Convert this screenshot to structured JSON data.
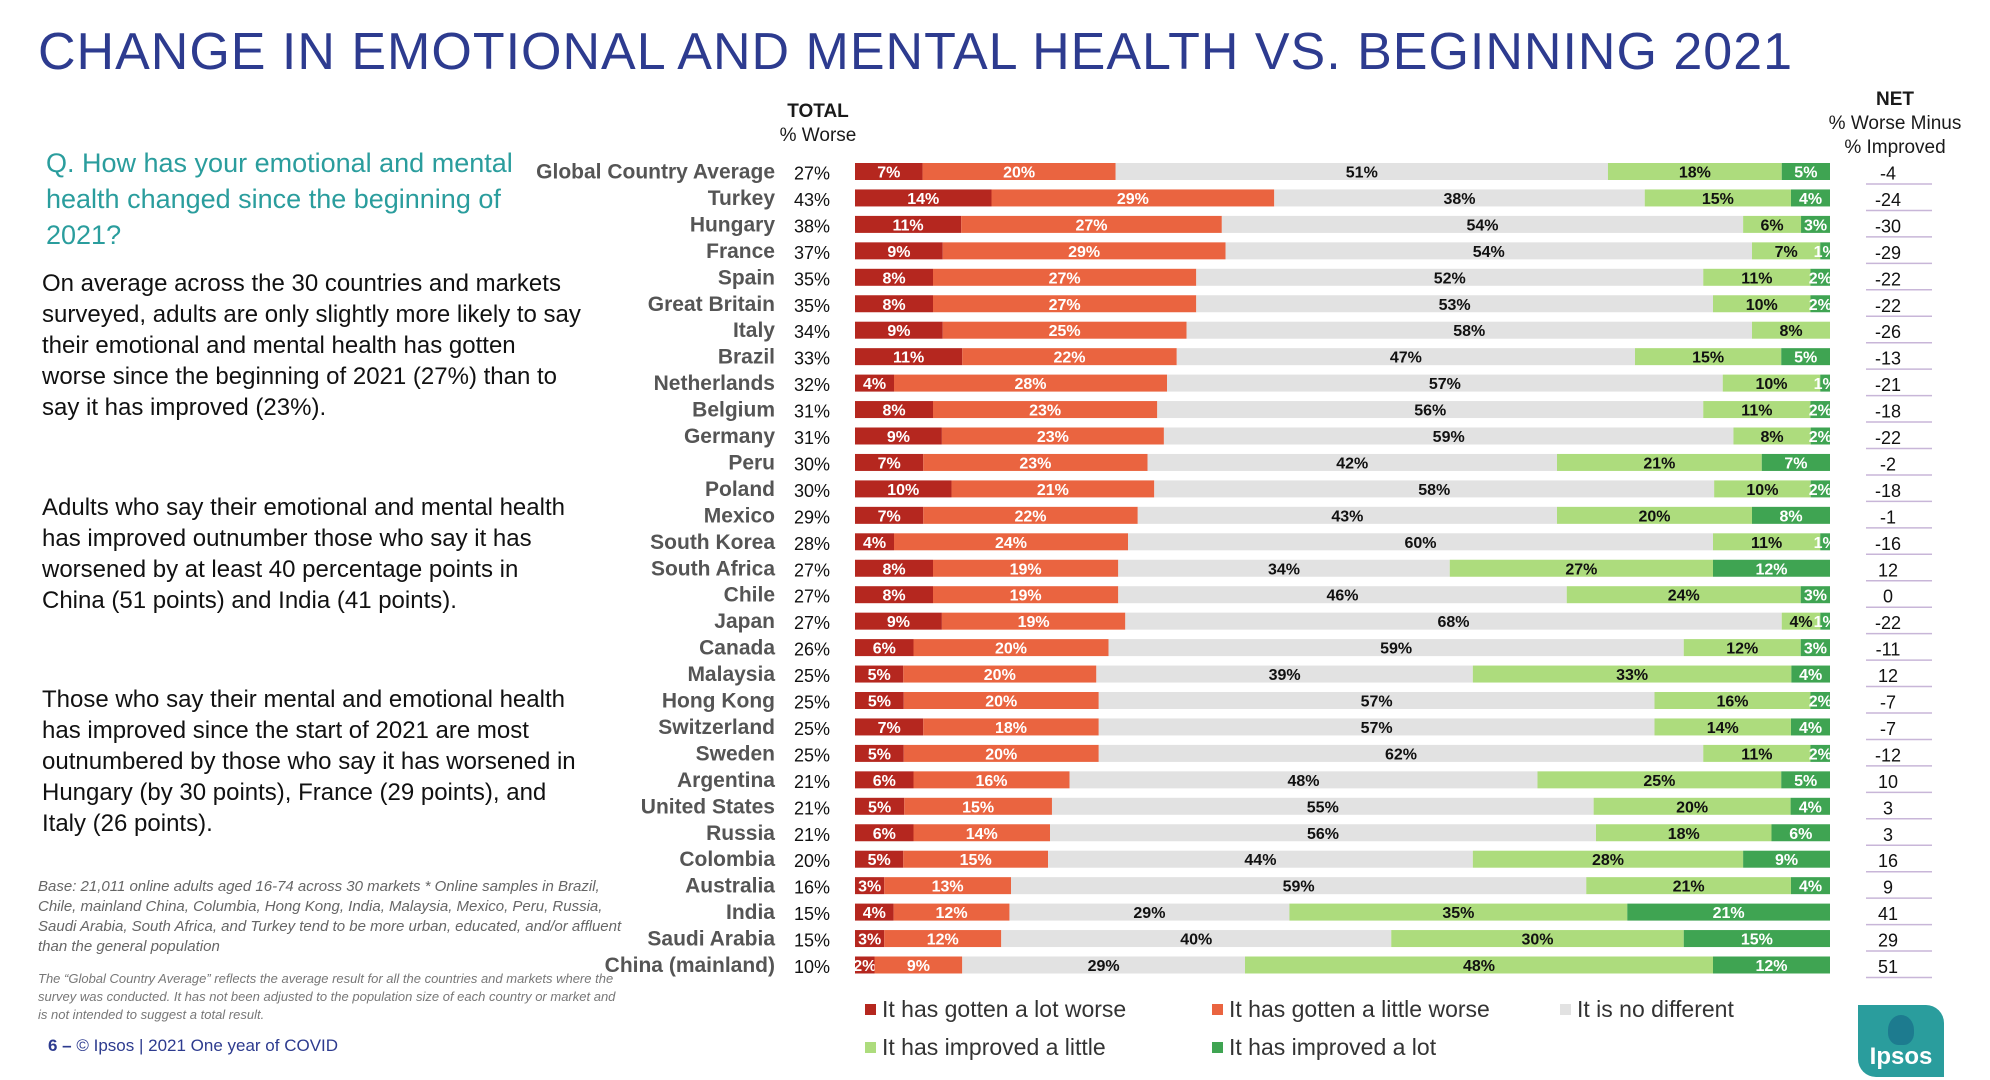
{
  "title": "CHANGE IN EMOTIONAL AND MENTAL HEALTH VS. BEGINNING 2021",
  "question": "Q. How has your emotional and mental health changed since the beginning of 2021?",
  "paragraphs": [
    "On average across the 30 countries and markets surveyed, adults are only slightly more likely to say their emotional and mental health has gotten worse since the beginning of 2021 (27%) than to say it has improved (23%).",
    "Adults who say their emotional and mental health has improved outnumber those who say it has worsened by at least 40 percentage points in China (51 points) and India (41 points).",
    "Those who say their mental and emotional health has improved since the start of 2021 are most outnumbered by those who say it has worsened in Hungary (by 30 points), France (29 points), and Italy (26 points)."
  ],
  "base_note": "Base: 21,011 online adults aged 16-74 across 30 markets * Online samples in Brazil, Chile, mainland China, Columbia, Hong Kong, India, Malaysia, Mexico, Peru, Russia, Saudi Arabia, South Africa, and Turkey tend to be more urban, educated, and/or affluent than the general population",
  "global_note": "The “Global Country Average” reflects the average result for all the countries and markets where the survey was conducted. It has not been adjusted to the population size of each country or market and is not intended to suggest a total result.",
  "footer": {
    "page": "6 –",
    "text": "© Ipsos | 2021 One year of COVID"
  },
  "logo_text": "Ipsos",
  "headers": {
    "total_title": "TOTAL",
    "total_sub": "% Worse",
    "net_title": "NET",
    "net_sub1": "% Worse Minus",
    "net_sub2": "% Improved"
  },
  "colors": {
    "lot_worse": "#b5271f",
    "little_worse": "#ea6440",
    "no_different": "#e2e2e2",
    "improved_little": "#addc7d",
    "improved_lot": "#3fa452",
    "row_line": "#c8b6d8"
  },
  "chart_data": {
    "type": "bar",
    "orientation": "horizontal",
    "stacked": true,
    "normalized": true,
    "categories": [
      "Global Country Average",
      "Turkey",
      "Hungary",
      "France",
      "Spain",
      "Great Britain",
      "Italy",
      "Brazil",
      "Netherlands",
      "Belgium",
      "Germany",
      "Peru",
      "Poland",
      "Mexico",
      "South Korea",
      "South Africa",
      "Chile",
      "Japan",
      "Canada",
      "Malaysia",
      "Hong Kong",
      "Switzerland",
      "Sweden",
      "Argentina",
      "United States",
      "Russia",
      "Colombia",
      "Australia",
      "India",
      "Saudi Arabia",
      "China (mainland)"
    ],
    "series": [
      {
        "name": "It has gotten a lot worse",
        "values": [
          7,
          14,
          11,
          9,
          8,
          8,
          9,
          11,
          4,
          8,
          9,
          7,
          10,
          7,
          4,
          8,
          8,
          9,
          6,
          5,
          5,
          7,
          5,
          6,
          5,
          6,
          5,
          3,
          4,
          3,
          2
        ]
      },
      {
        "name": "It has gotten a little worse",
        "values": [
          20,
          29,
          27,
          29,
          27,
          27,
          25,
          22,
          28,
          23,
          23,
          23,
          21,
          22,
          24,
          19,
          19,
          19,
          20,
          20,
          20,
          18,
          20,
          16,
          15,
          14,
          15,
          13,
          12,
          12,
          9
        ]
      },
      {
        "name": "It is no different",
        "values": [
          51,
          38,
          54,
          54,
          52,
          53,
          58,
          47,
          57,
          56,
          59,
          42,
          58,
          43,
          60,
          34,
          46,
          68,
          59,
          39,
          57,
          57,
          62,
          48,
          55,
          56,
          44,
          59,
          29,
          40,
          29
        ]
      },
      {
        "name": "It has improved a little",
        "values": [
          18,
          15,
          6,
          7,
          11,
          10,
          8,
          15,
          10,
          11,
          8,
          21,
          10,
          20,
          11,
          27,
          24,
          4,
          12,
          33,
          16,
          14,
          11,
          25,
          20,
          18,
          28,
          21,
          35,
          30,
          48
        ]
      },
      {
        "name": "It has improved a lot",
        "values": [
          5,
          4,
          3,
          1,
          2,
          2,
          0,
          5,
          1,
          2,
          2,
          7,
          2,
          8,
          1,
          12,
          3,
          1,
          3,
          4,
          2,
          4,
          2,
          5,
          4,
          6,
          9,
          4,
          21,
          15,
          12
        ]
      }
    ],
    "total_worse": [
      "27%",
      "43%",
      "38%",
      "37%",
      "35%",
      "35%",
      "34%",
      "33%",
      "32%",
      "31%",
      "31%",
      "30%",
      "30%",
      "29%",
      "28%",
      "27%",
      "27%",
      "27%",
      "26%",
      "25%",
      "25%",
      "25%",
      "25%",
      "21%",
      "21%",
      "21%",
      "20%",
      "16%",
      "15%",
      "15%",
      "10%"
    ],
    "net": [
      "-4",
      "-24",
      "-30",
      "-29",
      "-22",
      "-22",
      "-26",
      "-13",
      "-21",
      "-18",
      "-22",
      "-2",
      "-18",
      "-1",
      "-16",
      "12",
      "0",
      "-22",
      "-11",
      "12",
      "-7",
      "-7",
      "-12",
      "10",
      "3",
      "3",
      "16",
      "9",
      "41",
      "29",
      "51"
    ],
    "segment_labels": [
      [
        "7%",
        "20%",
        "51%",
        "18%",
        "5%"
      ],
      [
        "14%",
        "29%",
        "38%",
        "15%",
        "4%"
      ],
      [
        "11%",
        "27%",
        "54%",
        "6%",
        "3%"
      ],
      [
        "9%",
        "29%",
        "54%",
        "7%",
        "1%"
      ],
      [
        "8%",
        "27%",
        "52%",
        "11%",
        "2%"
      ],
      [
        "8%",
        "27%",
        "53%",
        "10%",
        "2%"
      ],
      [
        "9%",
        "25%",
        "58%",
        "8%",
        "0%"
      ],
      [
        "11%",
        "22%",
        "47%",
        "15%",
        "5%"
      ],
      [
        "4%",
        "28%",
        "57%",
        "10%",
        "1%"
      ],
      [
        "8%",
        "23%",
        "56%",
        "11%",
        "2%"
      ],
      [
        "9%",
        "23%",
        "59%",
        "8%",
        "2%"
      ],
      [
        "7%",
        "23%",
        "42%",
        "21%",
        "7%"
      ],
      [
        "10%",
        "21%",
        "58%",
        "10%",
        "2%"
      ],
      [
        "7%",
        "22%",
        "43%",
        "20%",
        "8%"
      ],
      [
        "4%",
        "24%",
        "60%",
        "11%",
        "1%"
      ],
      [
        "8%",
        "19%",
        "34%",
        "27%",
        "12%"
      ],
      [
        "8%",
        "19%",
        "46%",
        "24%",
        "3%"
      ],
      [
        "9%",
        "19%",
        "68%",
        "4%",
        "1%"
      ],
      [
        "6%",
        "20%",
        "59%",
        "12%",
        "3%"
      ],
      [
        "5%",
        "20%",
        "39%",
        "33%",
        "4%"
      ],
      [
        "5%",
        "20%",
        "57%",
        "16%",
        "2%"
      ],
      [
        "7%",
        "18%",
        "57%",
        "14%",
        "4%"
      ],
      [
        "5%",
        "20%",
        "62%",
        "11%",
        "2%"
      ],
      [
        "6%",
        "16%",
        "48%",
        "25%",
        "5%"
      ],
      [
        "5%",
        "15%",
        "55%",
        "20%",
        "4%"
      ],
      [
        "6%",
        "14%",
        "56%",
        "18%",
        "6%"
      ],
      [
        "5%",
        "15%",
        "44%",
        "28%",
        "9%"
      ],
      [
        "3%",
        "13%",
        "59%",
        "21%",
        "4%"
      ],
      [
        "4%",
        "12%",
        "29%",
        "35%",
        "21%"
      ],
      [
        "3%",
        "12%",
        "40%",
        "30%",
        "15%"
      ],
      [
        "2%",
        "9%",
        "29%",
        "48%",
        "12%"
      ]
    ],
    "legend_position": "bottom"
  }
}
